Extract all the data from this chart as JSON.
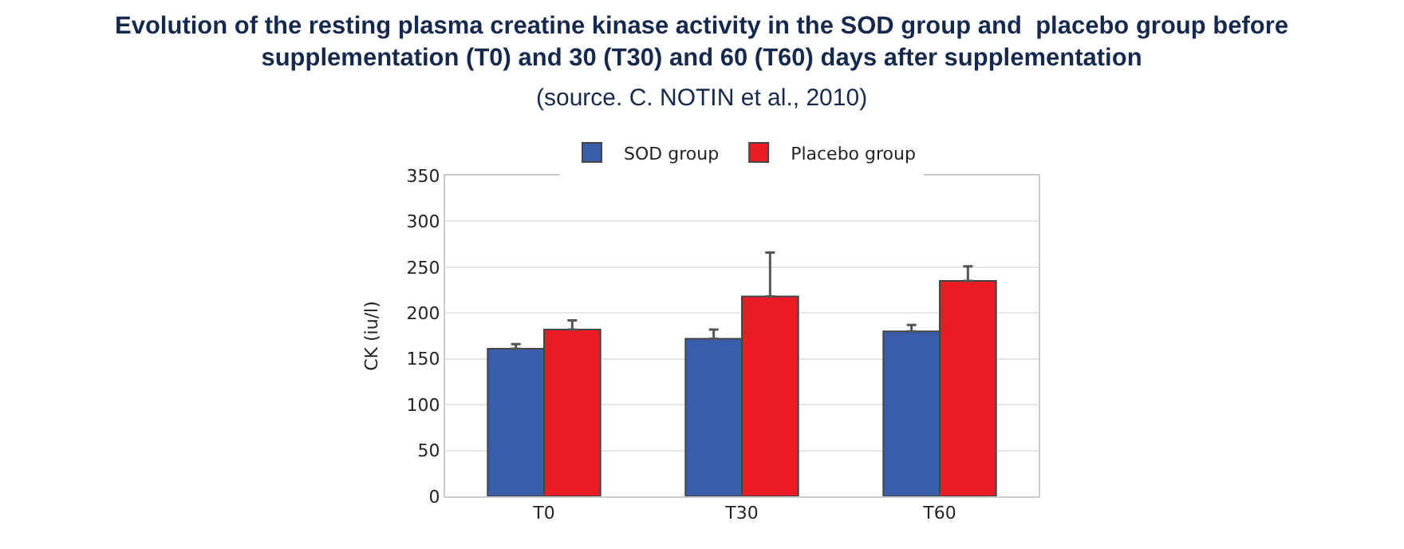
{
  "chart_data": {
    "type": "bar",
    "title": "Evolution of the resting plasma creatine kinase activity in the SOD group and  placebo group before\nsupplementation (T0) and 30 (T30) and 60 (T60) days after supplementation",
    "subtitle": "(source. C. NOTIN et al., 2010)",
    "ylabel": "CK (iu/l)",
    "categories": [
      "T0",
      "T30",
      "T60"
    ],
    "series": [
      {
        "name": "SOD group",
        "color": "#3a5eab",
        "values": [
          161,
          172,
          180
        ],
        "errors": [
          [
            161,
            166
          ],
          [
            172,
            182
          ],
          [
            180,
            187
          ]
        ]
      },
      {
        "name": "Placebo group",
        "color": "#ec1c24",
        "values": [
          182,
          218,
          235
        ],
        "errors": [
          [
            182,
            192
          ],
          [
            218,
            266
          ],
          [
            235,
            251
          ]
        ]
      }
    ],
    "ylim": [
      0,
      350
    ],
    "yticks": [
      0,
      50,
      100,
      150,
      200,
      250,
      300,
      350
    ],
    "grid": "y",
    "legend": "top"
  }
}
